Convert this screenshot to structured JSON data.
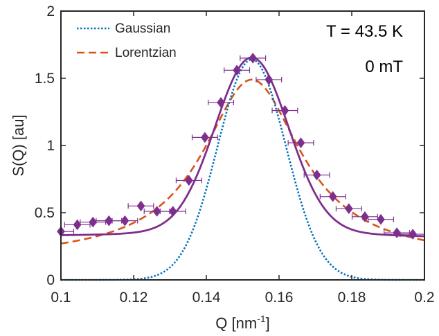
{
  "chart_data": {
    "type": "scatter",
    "xlabel": {
      "base": "Q [nm",
      "sup": "-1",
      "tail": "]"
    },
    "ylabel": "S(Q)  [au]",
    "xlim": [
      0.1,
      0.2
    ],
    "ylim": [
      0,
      2
    ],
    "xticks": [
      "0.1",
      "0.12",
      "0.14",
      "0.16",
      "0.18",
      "0.2"
    ],
    "yticks": [
      "0",
      "0.5",
      "1",
      "1.5",
      "2"
    ],
    "grid": false,
    "legend_position": "top-left",
    "annotations": [
      "T = 43.5 K",
      "0 mT"
    ],
    "series": [
      {
        "name": "Gaussian",
        "style": "dotted",
        "color": "#0072BD",
        "model": {
          "amplitude": 1.64,
          "center": 0.1525,
          "sigma": 0.0094,
          "baseline": 0
        }
      },
      {
        "name": "Lorentzian",
        "style": "dashed",
        "color": "#D95319",
        "model": {
          "amplitude": 1.34,
          "center": 0.1525,
          "gamma": 0.0165,
          "baseline": 0.15
        }
      },
      {
        "style": "solid",
        "color": "#7E2F8E",
        "model": {
          "gaussian_amplitude": 1.24,
          "center": 0.1525,
          "sigma": 0.01,
          "linear_baseline": [
            [
              0.1,
              0.34
            ],
            [
              0.2,
              0.33
            ]
          ],
          "lorentzian_amplitude": 0.1,
          "gamma": 0.02
        }
      },
      {
        "style": "markers",
        "marker": "diamond",
        "color": "#7E2F8E",
        "x_error": 0.0035,
        "y_error": 0.025,
        "x": [
          0.1,
          0.1045,
          0.1088,
          0.1132,
          0.1176,
          0.122,
          0.1264,
          0.1308,
          0.1352,
          0.1396,
          0.144,
          0.1484,
          0.1528,
          0.1572,
          0.1616,
          0.166,
          0.1704,
          0.1748,
          0.1792,
          0.1836,
          0.188,
          0.1924,
          0.1968
        ],
        "y": [
          0.36,
          0.41,
          0.43,
          0.44,
          0.44,
          0.55,
          0.51,
          0.51,
          0.74,
          1.06,
          1.32,
          1.56,
          1.65,
          1.49,
          1.26,
          1.02,
          0.78,
          0.62,
          0.53,
          0.47,
          0.45,
          0.35,
          0.34
        ]
      }
    ]
  }
}
